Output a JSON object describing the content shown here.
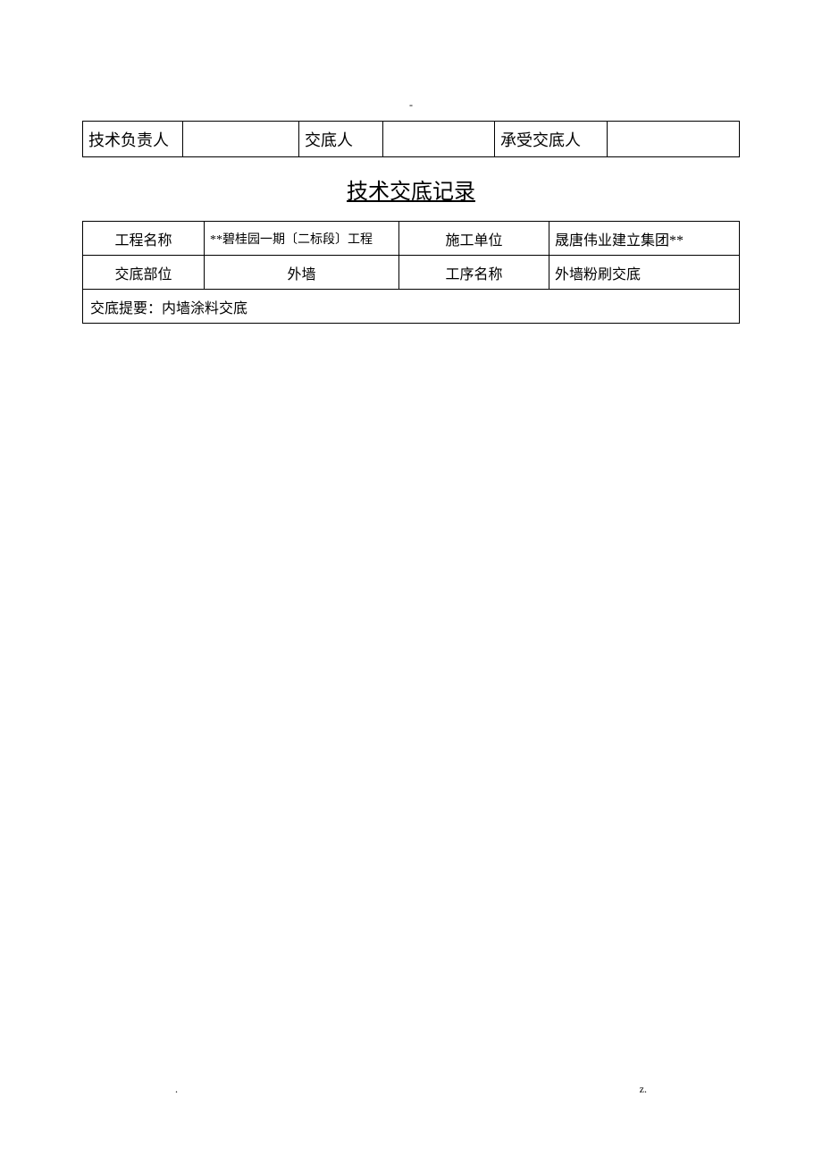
{
  "topDash": "-",
  "topTable": {
    "label1": "技术负责人",
    "blank1": "",
    "label2": "交底人",
    "blank2": "",
    "label3": "承受交底人",
    "blank3": ""
  },
  "title": "技术交底记录",
  "infoTable": {
    "row1": {
      "label1": "工程名称",
      "value1": "**碧桂园一期〔二标段〕工程",
      "label2": "施工单位",
      "value2": "晟唐伟业建立集团**"
    },
    "row2": {
      "label1": "交底部位",
      "value1": "外墙",
      "label2": "工序名称",
      "value2": "外墙粉刷交底"
    },
    "row3": {
      "summary": "交底提要：内墙涂料交底"
    }
  },
  "footer": {
    "left": ".",
    "right": "z."
  }
}
